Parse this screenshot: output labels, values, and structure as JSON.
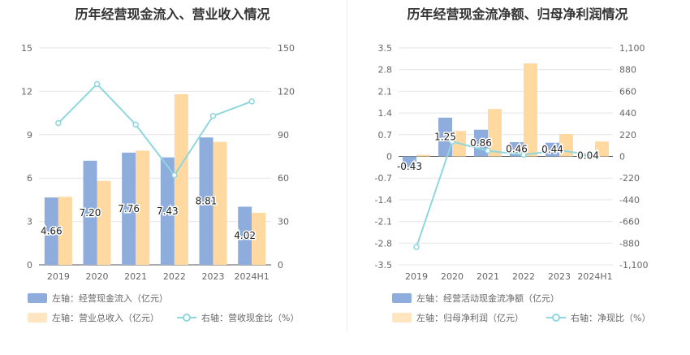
{
  "left_chart": {
    "title": "历年经营现金流入、营业收入情况",
    "legend": {
      "series1": "左轴：经营现金流入（亿元）",
      "series2": "左轴：营业总收入（亿元）",
      "series3": "右轴：营收现金比（%）"
    }
  },
  "right_chart": {
    "title": "历年经营现金流净额、归母净利润情况",
    "legend": {
      "series1": "左轴：经营活动现金流净额（亿元）",
      "series2": "左轴：归母净利润（亿元）",
      "series3": "右轴：净现比（%）"
    }
  },
  "colors": {
    "bar_primary": "#8eaddc",
    "bar_secondary": "#ffd9a0",
    "line": "#8fd6df",
    "grid": "#e6e6e6",
    "axis_text": "#666666"
  },
  "chart_data": [
    {
      "type": "bar",
      "title": "历年经营现金流入、营业收入情况",
      "categories": [
        "2019",
        "2020",
        "2021",
        "2022",
        "2023",
        "2024H1"
      ],
      "series": [
        {
          "name": "左轴：经营现金流入（亿元）",
          "axis": "left",
          "kind": "bar",
          "values": [
            4.66,
            7.2,
            7.76,
            7.43,
            8.81,
            4.02
          ],
          "labels": [
            "4.66",
            "7.20",
            "7.76",
            "7.43",
            "8.81",
            "4.02"
          ]
        },
        {
          "name": "左轴：营业总收入（亿元）",
          "axis": "left",
          "kind": "bar",
          "values": [
            4.7,
            5.8,
            7.9,
            11.8,
            8.5,
            3.6
          ]
        },
        {
          "name": "右轴：营收现金比（%）",
          "axis": "right",
          "kind": "line",
          "values": [
            98,
            125,
            97,
            62,
            103,
            113
          ]
        }
      ],
      "left_axis": {
        "min": 0,
        "max": 15,
        "ticks": [
          "0",
          "3",
          "6",
          "9",
          "12",
          "15"
        ]
      },
      "right_axis": {
        "min": 0,
        "max": 150,
        "ticks": [
          "0",
          "30",
          "60",
          "90",
          "120",
          "150"
        ]
      }
    },
    {
      "type": "bar",
      "title": "历年经营现金流净额、归母净利润情况",
      "categories": [
        "2019",
        "2020",
        "2021",
        "2022",
        "2023",
        "2024H1"
      ],
      "series": [
        {
          "name": "左轴：经营活动现金流净额（亿元）",
          "axis": "left",
          "kind": "bar",
          "values": [
            -0.43,
            1.25,
            0.86,
            0.46,
            0.44,
            0.04
          ],
          "labels": [
            "-0.43",
            "1.25",
            "0.86",
            "0.46",
            "0.44",
            "0.04"
          ]
        },
        {
          "name": "左轴：归母净利润（亿元）",
          "axis": "left",
          "kind": "bar",
          "values": [
            0.05,
            0.82,
            1.53,
            3.0,
            0.72,
            0.48
          ]
        },
        {
          "name": "右轴：净现比（%）",
          "axis": "right",
          "kind": "line",
          "values": [
            -920,
            150,
            57,
            16,
            63,
            8
          ]
        }
      ],
      "left_axis": {
        "min": -3.5,
        "max": 3.5,
        "ticks": [
          "-3.5",
          "-2.8",
          "-2.1",
          "-1.4",
          "-0.7",
          "0",
          "0.7",
          "1.4",
          "2.1",
          "2.8",
          "3.5"
        ]
      },
      "right_axis": {
        "min": -1100,
        "max": 1100,
        "ticks": [
          "-1,100",
          "-880",
          "-660",
          "-440",
          "-220",
          "0",
          "220",
          "440",
          "660",
          "880",
          "1,100"
        ]
      }
    }
  ]
}
